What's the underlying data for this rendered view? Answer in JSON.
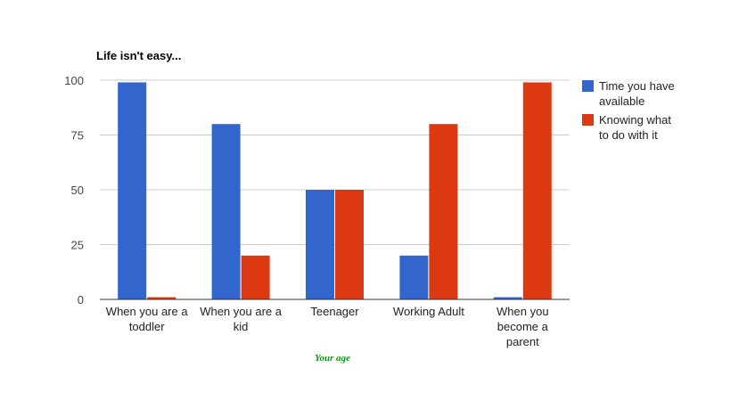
{
  "chart_data": {
    "type": "bar",
    "title": "Life isn't easy...",
    "xlabel": "Your age",
    "ylabel": "",
    "ylim": [
      0,
      100
    ],
    "yticks": [
      "0",
      "25",
      "50",
      "75",
      "100"
    ],
    "categories": [
      [
        "When you are a",
        "toddler"
      ],
      [
        "When you are a",
        "kid"
      ],
      [
        "Teenager"
      ],
      [
        "Working Adult"
      ],
      [
        "When you",
        "become a",
        "parent"
      ]
    ],
    "series": [
      {
        "name": [
          "Time you have",
          "available"
        ],
        "color": "#3366cc",
        "values": [
          99,
          80,
          50,
          20,
          1
        ]
      },
      {
        "name": [
          "Knowing what",
          "to do with it"
        ],
        "color": "#dc3912",
        "values": [
          1,
          20,
          50,
          80,
          99
        ]
      }
    ],
    "grid": true,
    "legend": "right",
    "xlabel_color": "#109618"
  }
}
